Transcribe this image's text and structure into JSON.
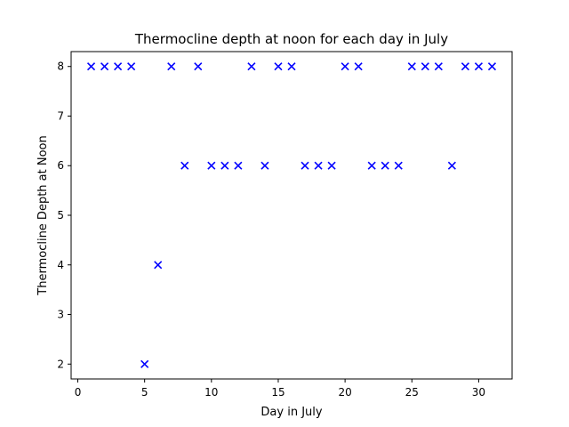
{
  "chart_data": {
    "type": "scatter",
    "title": "Thermocline depth at noon for each day in July",
    "xlabel": "Day in July",
    "ylabel": "Thermocline Depth at Noon",
    "xlim": [
      -0.5,
      32.5
    ],
    "ylim": [
      1.7,
      8.3
    ],
    "xticks": [
      0,
      5,
      10,
      15,
      20,
      25,
      30
    ],
    "yticks": [
      2,
      3,
      4,
      5,
      6,
      7,
      8
    ],
    "marker": "x",
    "grid": false,
    "color": "#0000ff",
    "series": [
      {
        "x": [
          1,
          2,
          3,
          4,
          5,
          6,
          7,
          8,
          9,
          10,
          11,
          12,
          13,
          14,
          15,
          16,
          17,
          18,
          19,
          20,
          21,
          22,
          23,
          24,
          25,
          26,
          27,
          28,
          29,
          30,
          31
        ],
        "y": [
          8,
          8,
          8,
          8,
          2,
          4,
          8,
          6,
          8,
          6,
          6,
          6,
          8,
          6,
          8,
          8,
          6,
          6,
          6,
          8,
          8,
          6,
          6,
          6,
          8,
          8,
          8,
          6,
          8,
          8,
          8
        ]
      }
    ]
  }
}
